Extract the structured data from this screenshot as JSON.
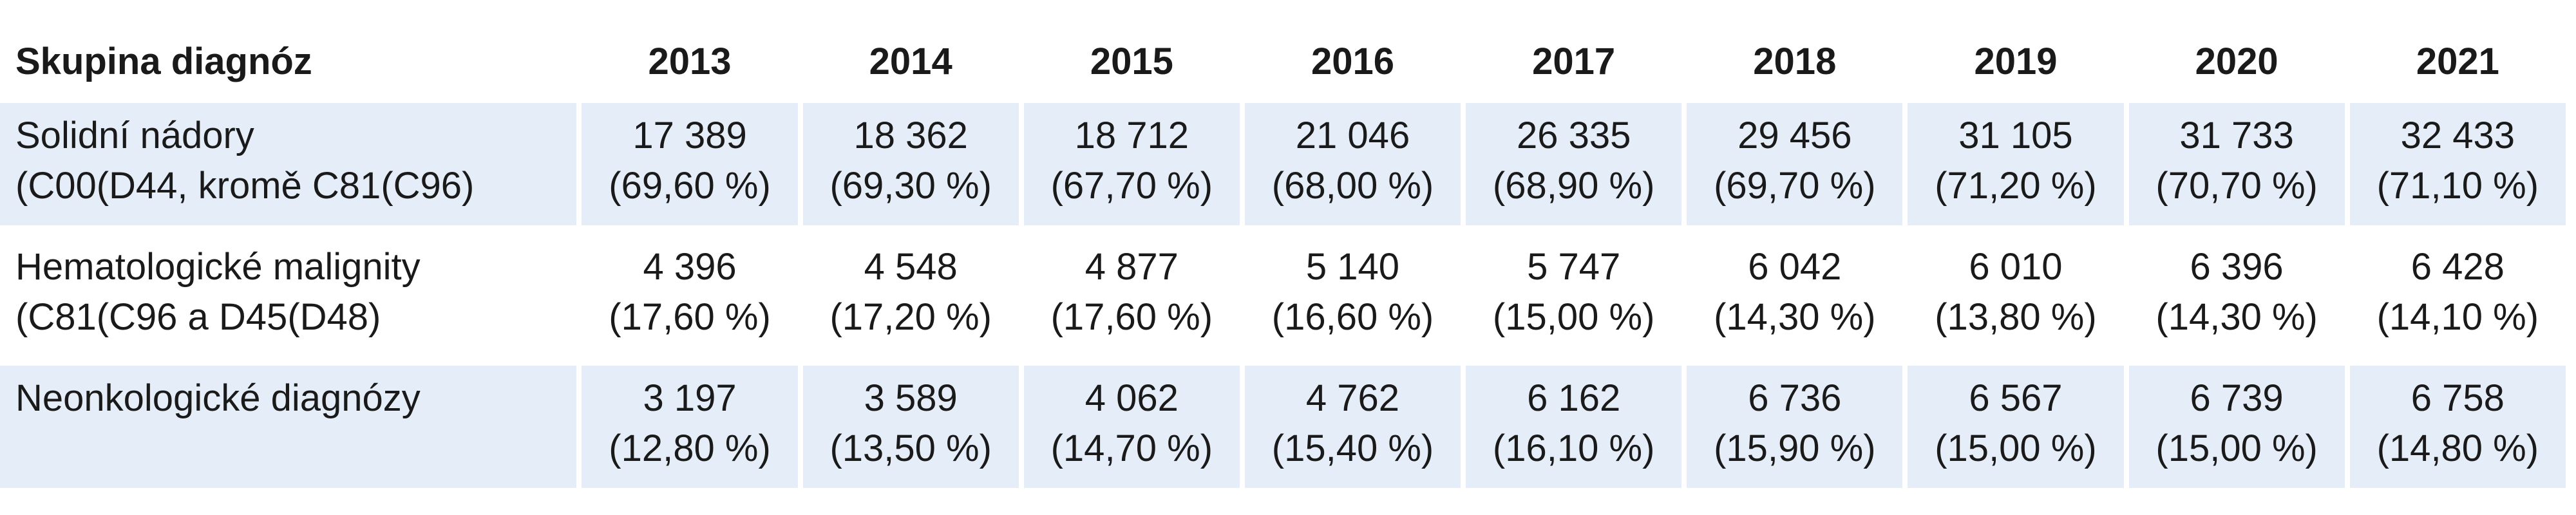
{
  "table": {
    "header": {
      "group_label": "Skupina diagnóz",
      "years": [
        "2013",
        "2014",
        "2015",
        "2016",
        "2017",
        "2018",
        "2019",
        "2020",
        "2021"
      ]
    },
    "rows": [
      {
        "name_line1": "Solidní nádory",
        "name_line2": "(C00(D44, kromě C81(C96)",
        "cells": [
          {
            "count": "17 389",
            "pct": "(69,60 %)"
          },
          {
            "count": "18 362",
            "pct": "(69,30 %)"
          },
          {
            "count": "18 712",
            "pct": "(67,70 %)"
          },
          {
            "count": "21 046",
            "pct": "(68,00 %)"
          },
          {
            "count": "26 335",
            "pct": "(68,90 %)"
          },
          {
            "count": "29 456",
            "pct": "(69,70 %)"
          },
          {
            "count": "31 105",
            "pct": "(71,20 %)"
          },
          {
            "count": "31 733",
            "pct": "(70,70 %)"
          },
          {
            "count": "32 433",
            "pct": "(71,10 %)"
          }
        ]
      },
      {
        "name_line1": "Hematologické malignity",
        "name_line2": "(C81(C96 a D45(D48)",
        "cells": [
          {
            "count": "4 396",
            "pct": "(17,60 %)"
          },
          {
            "count": "4 548",
            "pct": "(17,20 %)"
          },
          {
            "count": "4 877",
            "pct": "(17,60 %)"
          },
          {
            "count": "5 140",
            "pct": "(16,60 %)"
          },
          {
            "count": "5 747",
            "pct": "(15,00 %)"
          },
          {
            "count": "6 042",
            "pct": "(14,30 %)"
          },
          {
            "count": "6 010",
            "pct": "(13,80 %)"
          },
          {
            "count": "6 396",
            "pct": "(14,30 %)"
          },
          {
            "count": "6 428",
            "pct": "(14,10 %)"
          }
        ]
      },
      {
        "name_line1": "Neonkologické diagnózy",
        "name_line2": "",
        "cells": [
          {
            "count": "3 197",
            "pct": "(12,80 %)"
          },
          {
            "count": "3 589",
            "pct": "(13,50 %)"
          },
          {
            "count": "4 062",
            "pct": "(14,70 %)"
          },
          {
            "count": "4 762",
            "pct": "(15,40 %)"
          },
          {
            "count": "6 162",
            "pct": "(16,10 %)"
          },
          {
            "count": "6 736",
            "pct": "(15,90 %)"
          },
          {
            "count": "6 567",
            "pct": "(15,00 %)"
          },
          {
            "count": "6 739",
            "pct": "(15,00 %)"
          },
          {
            "count": "6 758",
            "pct": "(14,80 %)"
          }
        ]
      }
    ],
    "colors": {
      "row_shade": "#e5eef8",
      "text": "#1a1a1a"
    }
  }
}
